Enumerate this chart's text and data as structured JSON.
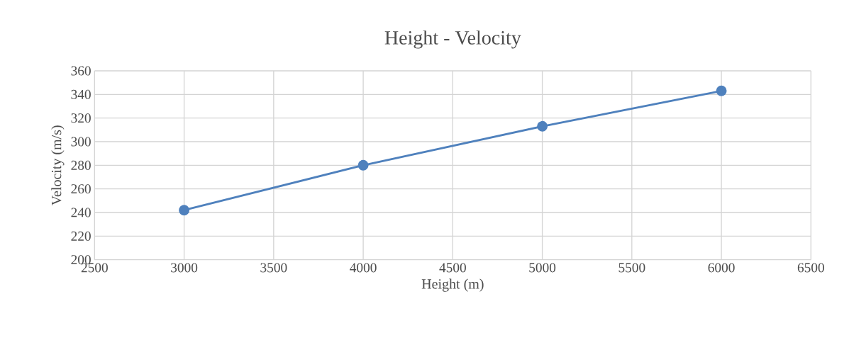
{
  "chart_data": {
    "type": "line",
    "title": "Height - Velocity",
    "xlabel": "Height (m)",
    "ylabel": "Velocity (m/s)",
    "x": [
      3000,
      4000,
      5000,
      6000
    ],
    "series": [
      {
        "color": "#4f81bd",
        "values": [
          242,
          280,
          313,
          343
        ]
      }
    ],
    "xlim": [
      2500,
      6500
    ],
    "xticks": [
      2500,
      3000,
      3500,
      4000,
      4500,
      5000,
      5500,
      6000,
      6500
    ],
    "ylim": [
      200,
      360
    ],
    "yticks": [
      200,
      220,
      240,
      260,
      280,
      300,
      320,
      340,
      360
    ],
    "grid": true,
    "marker": "circle",
    "line_style": "solid"
  }
}
